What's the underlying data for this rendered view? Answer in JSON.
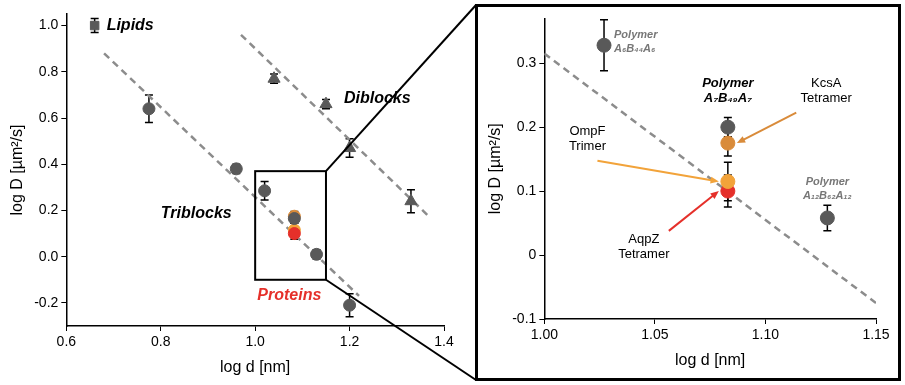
{
  "chart_data": [
    {
      "type": "scatter",
      "xlabel": "log d [nm]",
      "ylabel": "log D [µm²/s]",
      "xlim": [
        0.6,
        1.4
      ],
      "xticks": [
        0.6,
        0.8,
        {
          "value": 1,
          "label": "1.0"
        },
        1.2,
        1.4
      ],
      "ylim": [
        -0.3,
        1.05
      ],
      "yticks": [
        -0.2,
        {
          "value": 0,
          "label": "0.0"
        },
        0.2,
        0.4,
        0.6,
        0.8,
        {
          "value": 1,
          "label": "1.0"
        }
      ],
      "grid": false,
      "series": [
        {
          "name": "Lipids",
          "color": "#595959",
          "marker": "square",
          "x": [
            0.66
          ],
          "y": [
            1.0
          ],
          "yerr": [
            0.03
          ]
        },
        {
          "name": "Triblocks",
          "color": "#595959",
          "marker": "circle",
          "x": [
            0.775,
            0.96,
            1.02,
            1.083,
            1.13,
            1.2
          ],
          "y": [
            0.64,
            0.38,
            0.285,
            0.165,
            0.01,
            -0.21
          ],
          "yerr": [
            0.06,
            0.02,
            0.04,
            0.02,
            0.02,
            0.05
          ]
        },
        {
          "name": "Diblocks",
          "color": "#595959",
          "marker": "triangle",
          "x": [
            1.04,
            1.15,
            1.2,
            1.33
          ],
          "y": [
            0.77,
            0.66,
            0.47,
            0.24
          ],
          "yerr": [
            0.02,
            0.02,
            0.04,
            0.05
          ]
        },
        {
          "name": "Proteins",
          "color": "#e5302a",
          "colors": [
            "#d98b3a",
            "#f2a33a",
            "#e5302a"
          ],
          "marker": "circle",
          "x": [
            1.083,
            1.083,
            1.083
          ],
          "y": [
            0.175,
            0.115,
            0.1
          ],
          "yerr": [
            0.02,
            0.03,
            0.025
          ]
        }
      ],
      "trend_lines": [
        {
          "x": [
            0.68,
            1.22
          ],
          "y": [
            0.88,
            -0.17
          ],
          "line_style": "dashed",
          "color": "#8c8c8c"
        },
        {
          "x": [
            0.97,
            1.37
          ],
          "y": [
            0.96,
            0.17
          ],
          "line_style": "dashed",
          "color": "#8c8c8c"
        }
      ]
    },
    {
      "type": "scatter",
      "xlabel": "log d [nm]",
      "ylabel": "log D [µm²/s]",
      "xlim": [
        1.0,
        1.15
      ],
      "xticks": [
        {
          "value": 1,
          "label": "1.00"
        },
        1.05,
        {
          "value": 1.1,
          "label": "1.10"
        },
        1.15
      ],
      "ylim": [
        -0.1,
        0.37
      ],
      "yticks": [
        -0.1,
        0,
        0.1,
        0.2,
        0.3
      ],
      "grid": false,
      "series": [
        {
          "name": "Polymer A₆B₄₄A₆",
          "color": "#595959",
          "marker": "circle",
          "x": [
            1.027
          ],
          "y": [
            0.328
          ],
          "yerr": [
            0.04
          ]
        },
        {
          "name": "Polymer A₇B₄₉A₇",
          "color": "#595959",
          "marker": "circle",
          "x": [
            1.083
          ],
          "y": [
            0.2
          ],
          "yerr": [
            0.015
          ]
        },
        {
          "name": "Polymer A₁₂B₆₂A₁₂",
          "color": "#595959",
          "marker": "circle",
          "x": [
            1.128
          ],
          "y": [
            0.058
          ],
          "yerr": [
            0.02
          ]
        },
        {
          "name": "KcsA Tetramer",
          "color": "#d98b3a",
          "marker": "circle",
          "x": [
            1.083
          ],
          "y": [
            0.175
          ],
          "yerr": [
            0.02
          ]
        },
        {
          "name": "OmpF Trimer",
          "color": "#f2a33a",
          "marker": "circle",
          "x": [
            1.083
          ],
          "y": [
            0.115
          ],
          "yerr": [
            0.03
          ]
        },
        {
          "name": "AqpZ Tetramer",
          "color": "#e5302a",
          "marker": "circle",
          "x": [
            1.083
          ],
          "y": [
            0.1
          ],
          "yerr": [
            0.025
          ]
        }
      ],
      "trend_lines": [
        {
          "x": [
            1.0,
            1.15
          ],
          "y": [
            0.315,
            -0.075
          ],
          "line_style": "dashed",
          "color": "#8c8c8c"
        }
      ]
    }
  ]
}
